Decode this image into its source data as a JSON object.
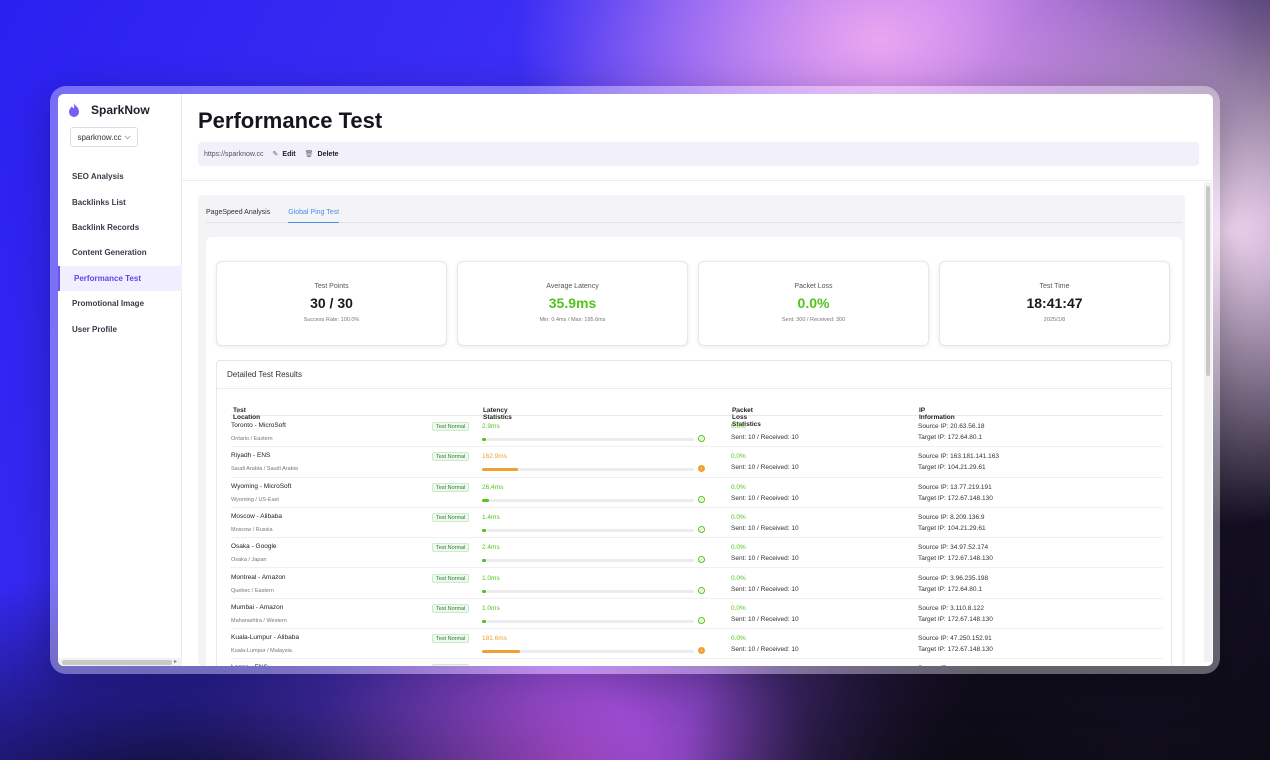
{
  "app": {
    "name": "SparkNow",
    "site": "sparknow.cc"
  },
  "sidebar": {
    "items": [
      {
        "label": "SEO Analysis"
      },
      {
        "label": "Backlinks List"
      },
      {
        "label": "Backlink Records"
      },
      {
        "label": "Content Generation"
      },
      {
        "label": "Performance Test",
        "active": true
      },
      {
        "label": "Promotional Image"
      },
      {
        "label": "User Profile"
      }
    ]
  },
  "header": {
    "title": "Performance Test",
    "url": "https://sparknow.cc",
    "edit_label": "Edit",
    "delete_label": "Delete"
  },
  "tabs": [
    {
      "label": "PageSpeed Analysis"
    },
    {
      "label": "Global Ping Test",
      "active": true
    }
  ],
  "stats": {
    "test_points": {
      "label": "Test Points",
      "value": "30 / 30",
      "sub": "Success Rate: 100.0%"
    },
    "avg_latency": {
      "label": "Average Latency",
      "value": "35.9ms",
      "sub": "Min: 0.4ms / Max: 195.6ms"
    },
    "packet_loss": {
      "label": "Packet Loss",
      "value": "0.0%",
      "sub": "Sent: 300 / Received: 300"
    },
    "test_time": {
      "label": "Test Time",
      "value": "18:41:47",
      "sub": "2025/1/8"
    }
  },
  "results": {
    "title": "Detailed Test Results",
    "columns": {
      "location": "Test Location",
      "latency": "Latency Statistics",
      "loss": "Packet Loss Statistics",
      "ip": "IP Information"
    },
    "rows": [
      {
        "name": "Toronto - MicroSoft",
        "region": "Ontario / Eastern",
        "status": "Test Normal",
        "latency": "2.9ms",
        "latency_fraction": 0.015,
        "warn": false,
        "loss": "0.0%",
        "loss_detail": "Sent: 10 / Received: 10",
        "source_ip": "Source IP: 20.63.56.18",
        "target_ip": "Target IP: 172.64.80.1"
      },
      {
        "name": "Riyadh - ENS",
        "region": "Saudi Arabia / Saudi Arabia",
        "status": "Test Normal",
        "latency": "162.9ms",
        "latency_fraction": 0.17,
        "warn": true,
        "loss": "0.0%",
        "loss_detail": "Sent: 10 / Received: 10",
        "source_ip": "Source IP: 163.181.141.163",
        "target_ip": "Target IP: 104.21.29.61"
      },
      {
        "name": "Wyoming - MicroSoft",
        "region": "Wyoming / US-East",
        "status": "Test Normal",
        "latency": "26.4ms",
        "latency_fraction": 0.035,
        "warn": false,
        "loss": "0.0%",
        "loss_detail": "Sent: 10 / Received: 10",
        "source_ip": "Source IP: 13.77.219.191",
        "target_ip": "Target IP: 172.67.148.130"
      },
      {
        "name": "Moscow - Alibaba",
        "region": "Moscow / Russia",
        "status": "Test Normal",
        "latency": "1.4ms",
        "latency_fraction": 0.0,
        "warn": false,
        "loss": "0.0%",
        "loss_detail": "Sent: 10 / Received: 10",
        "source_ip": "Source IP: 8.209.136.9",
        "target_ip": "Target IP: 104.21.29.61"
      },
      {
        "name": "Osaka - Google",
        "region": "Osaka / Japan",
        "status": "Test Normal",
        "latency": "2.4ms",
        "latency_fraction": 0.0,
        "warn": false,
        "loss": "0.0%",
        "loss_detail": "Sent: 10 / Received: 10",
        "source_ip": "Source IP: 34.97.52.174",
        "target_ip": "Target IP: 172.67.148.130"
      },
      {
        "name": "Montreal - Amazon",
        "region": "Quebec / Eastern",
        "status": "Test Normal",
        "latency": "1.0ms",
        "latency_fraction": 0.0,
        "warn": false,
        "loss": "0.0%",
        "loss_detail": "Sent: 10 / Received: 10",
        "source_ip": "Source IP: 3.96.235.198",
        "target_ip": "Target IP: 172.64.80.1"
      },
      {
        "name": "Mumbai - Amazon",
        "region": "Maharashtra / Western",
        "status": "Test Normal",
        "latency": "1.0ms",
        "latency_fraction": 0.0,
        "warn": false,
        "loss": "0.0%",
        "loss_detail": "Sent: 10 / Received: 10",
        "source_ip": "Source IP: 3.110.8.122",
        "target_ip": "Target IP: 172.67.148.130"
      },
      {
        "name": "Kuala-Lumpur - Alibaba",
        "region": "Kuala-Lumpur / Malaysia",
        "status": "Test Normal",
        "latency": "181.6ms",
        "latency_fraction": 0.18,
        "warn": true,
        "loss": "0.0%",
        "loss_detail": "Sent: 10 / Received: 10",
        "source_ip": "Source IP: 47.250.152.91",
        "target_ip": "Target IP: 172.67.148.130"
      },
      {
        "name": "Lagos - ENS",
        "region": "",
        "status": "Test Normal",
        "latency": "",
        "latency_fraction": 0.0,
        "warn": false,
        "loss": "",
        "loss_detail": "",
        "source_ip": "Source IP: ",
        "target_ip": ""
      }
    ]
  },
  "colors": {
    "accent": "#5b48e8",
    "ok": "#52c41a",
    "warn": "#f0a030",
    "tab_active": "#4a8fe8"
  }
}
